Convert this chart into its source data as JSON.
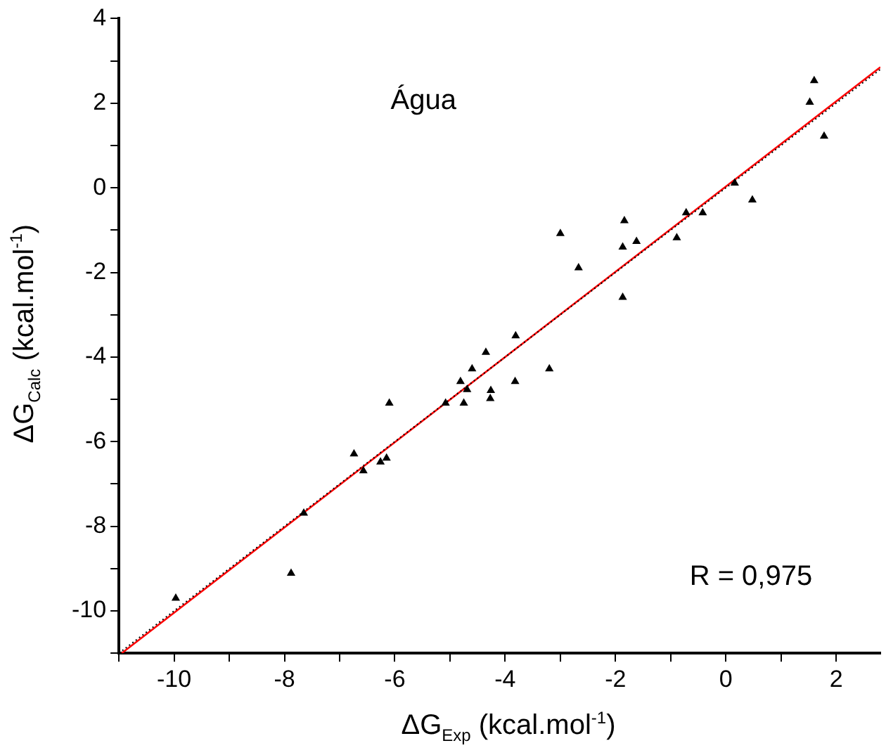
{
  "chart_data": {
    "type": "scatter",
    "xlabel": "ΔG$_{Exp}$ (kcal.mol$^{-1}$)",
    "ylabel": "ΔG$_{Calc}$ (kcal.mol$^{-1}$)",
    "annotations": [
      "Água",
      "R = 0,975"
    ],
    "xlim": [
      -11,
      2.8
    ],
    "xticks": [
      {
        "value": -11,
        "label": null
      },
      -10,
      {
        "value": -9,
        "label": null
      },
      -8,
      {
        "value": -7,
        "label": null
      },
      -6,
      {
        "value": -5,
        "label": null
      },
      -4,
      {
        "value": -3,
        "label": null
      },
      -2,
      {
        "value": -1,
        "label": null
      },
      0,
      {
        "value": 1,
        "label": null
      },
      2
    ],
    "ylim": [
      -11,
      4
    ],
    "yticks": [
      {
        "value": -11,
        "label": null
      },
      -10,
      {
        "value": -9,
        "label": null
      },
      -8,
      {
        "value": -7,
        "label": null
      },
      -6,
      {
        "value": -5,
        "label": null
      },
      -4,
      {
        "value": -3,
        "label": null
      },
      -2,
      {
        "value": -1,
        "label": null
      },
      0,
      {
        "value": 1,
        "label": null
      },
      2,
      {
        "value": 3,
        "label": null
      },
      4
    ],
    "grid": false,
    "legend": false,
    "series": [
      {
        "color": "#000000",
        "marker": "triangle",
        "x": [
          -9.97,
          -7.88,
          -7.65,
          -6.74,
          -6.57,
          -6.26,
          -6.15,
          -6.1,
          -5.08,
          -4.81,
          -4.75,
          -4.69,
          -4.6,
          -4.35,
          -4.26,
          -4.27,
          -3.81,
          -3.82,
          -3.2,
          -3.0,
          -2.67,
          -1.87,
          -1.84,
          -1.87,
          -1.62,
          -0.89,
          -0.72,
          -0.42,
          0.16,
          0.48,
          1.52,
          1.6,
          1.78
        ],
        "values": [
          -9.7,
          -9.11,
          -7.69,
          -6.29,
          -6.69,
          -6.48,
          -6.39,
          -5.09,
          -5.09,
          -4.58,
          -5.09,
          -4.77,
          -4.28,
          -3.89,
          -4.79,
          -4.98,
          -3.5,
          -4.58,
          -4.28,
          -1.08,
          -1.89,
          -1.4,
          -0.78,
          -2.59,
          -1.27,
          -1.18,
          -0.59,
          -0.59,
          0.11,
          -0.29,
          2.02,
          2.53,
          1.22
        ]
      },
      {
        "type": "line",
        "color": "#000000",
        "line_style": "dotted",
        "marker": "none",
        "x": [
          -11,
          2.8
        ],
        "values": [
          -11,
          2.8
        ]
      },
      {
        "type": "line",
        "color": "#ff0000",
        "line_style": "solid",
        "marker": "none",
        "x": [
          -10.95,
          2.8
        ],
        "values": [
          -11,
          2.85
        ]
      }
    ]
  }
}
